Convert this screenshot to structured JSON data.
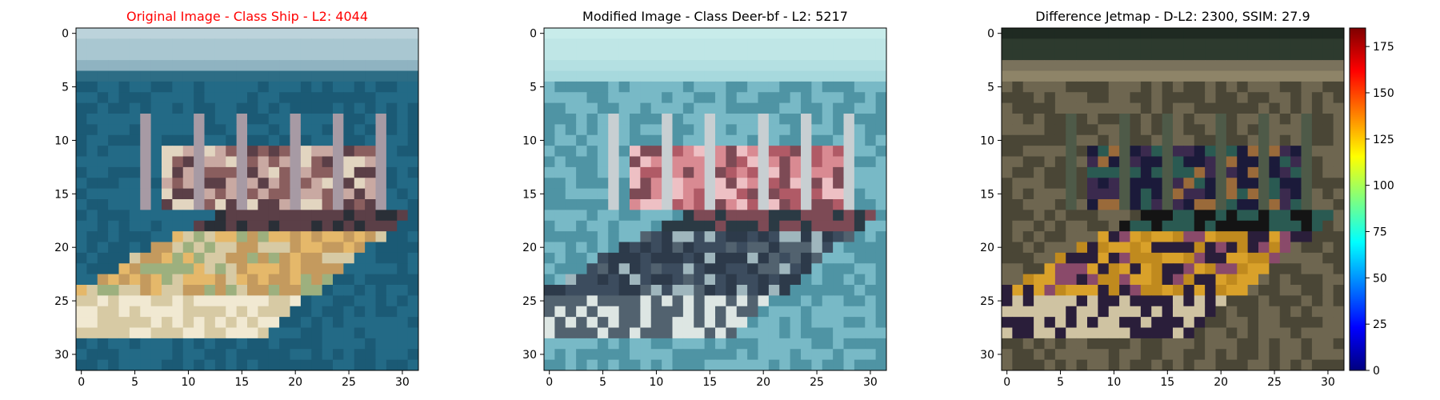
{
  "colors": {
    "title_red": "#ff0000",
    "title_black": "#000000",
    "jet": [
      "#00007f",
      "#0000ff",
      "#007fff",
      "#00ffff",
      "#7fff7f",
      "#ffff00",
      "#ff7f00",
      "#ff0000",
      "#7f0000"
    ]
  },
  "chart_data": [
    {
      "type": "heatmap",
      "title": "Original Image - Class Ship - L2: 4044",
      "title_color": "#ff0000",
      "xticks": [
        0,
        5,
        10,
        15,
        20,
        25,
        30
      ],
      "yticks": [
        0,
        5,
        10,
        15,
        20,
        25,
        30
      ],
      "xlim": [
        -0.5,
        31.5
      ],
      "ylim": [
        31.5,
        -0.5
      ],
      "grid": false,
      "palette": {
        "sky": [
          "#bcd3db",
          "#a9c7d1",
          "#8fb3c1",
          "#2d6d85"
        ],
        "water": "#236a86",
        "water2": "#1b5a75",
        "mast": "#a79aa4",
        "cabin": [
          "#8a5e5e",
          "#c9a9a2",
          "#5b3f47",
          "#e2d5c0"
        ],
        "hull": [
          "#c49a5e",
          "#e5b86a",
          "#9db07e",
          "#f1e9d2",
          "#d7caa4"
        ],
        "dark": "#2a2f37"
      }
    },
    {
      "type": "heatmap",
      "title": "Modified Image - Class Deer-bf - L2: 5217",
      "title_color": "#000000",
      "xticks": [
        0,
        5,
        10,
        15,
        20,
        25,
        30
      ],
      "yticks": [
        0,
        5,
        10,
        15,
        20,
        25,
        30
      ],
      "xlim": [
        -0.5,
        31.5
      ],
      "ylim": [
        31.5,
        -0.5
      ],
      "grid": false,
      "palette": {
        "sky": [
          "#c8ecea",
          "#bfe6e6",
          "#b4e0e2",
          "#a7d9dd"
        ],
        "water": "#78b9c6",
        "water2": "#4f94a4",
        "mast": "#c8cfd2",
        "cabin": [
          "#b05a66",
          "#d98a92",
          "#7d4a55",
          "#eec0c4"
        ],
        "hull": [
          "#2d3a4a",
          "#3c4c5e",
          "#9fb6bd",
          "#dde6e3",
          "#52626f"
        ],
        "dark": "#2b3a44"
      }
    },
    {
      "type": "heatmap",
      "title": "Difference Jetmap - D-L2: 2300, SSIM: 27.9",
      "title_color": "#000000",
      "xticks": [
        0,
        5,
        10,
        15,
        20,
        25,
        30
      ],
      "yticks": [
        0,
        5,
        10,
        15,
        20,
        25,
        30
      ],
      "xlim": [
        -0.5,
        31.5
      ],
      "ylim": [
        31.5,
        -0.5
      ],
      "grid": false,
      "colorbar": {
        "ticks": [
          0,
          25,
          50,
          75,
          100,
          125,
          150,
          175
        ],
        "range": [
          0,
          185
        ]
      },
      "palette": {
        "sky": [
          "#1f2a22",
          "#2d3a2e",
          "#7a725c",
          "#8e8468"
        ],
        "water": "#6e6650",
        "water2": "#4a4636",
        "mast": "#4e5a48",
        "cabin": [
          "#1b1a3a",
          "#3b2a4e",
          "#2a5a52",
          "#9a6a3a"
        ],
        "hull": [
          "#c08a1e",
          "#d9a12a",
          "#8a4a6a",
          "#cfc3a2",
          "#2a1e3a"
        ],
        "dark": "#141414"
      }
    }
  ]
}
